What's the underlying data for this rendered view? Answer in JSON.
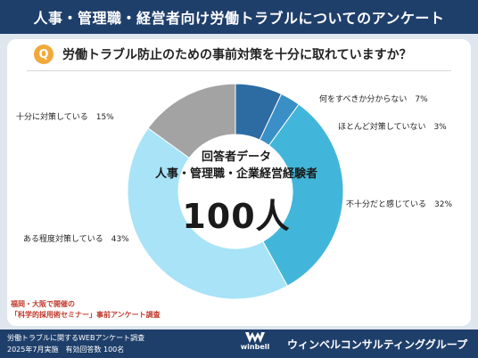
{
  "header": {
    "title": "人事・管理職・経営者向け労働トラブルについてのアンケート"
  },
  "question": {
    "badge": "Q",
    "text": "労働トラブル防止のための事前対策を十分に取れていますか？"
  },
  "center": {
    "line1": "回答者データ",
    "line2": "人事・管理職・企業経営経験者",
    "line3": "100人"
  },
  "chart_data": {
    "type": "pie",
    "categories": [
      "何をすべきか分からない",
      "ほとんど対策していない",
      "不十分だと感じている",
      "ある程度対策している",
      "十分に対策している"
    ],
    "values": [
      7,
      3,
      32,
      43,
      15
    ],
    "labels": [
      "何をすべきか分からない　7%",
      "ほとんど対策していない　3%",
      "不十分だと感じている　32%",
      "ある程度対策している　43%",
      "十分に対策している　15%"
    ],
    "colors": [
      "#2d6ca3",
      "#3a8fc6",
      "#42b6da",
      "#a8e3f7",
      "#a3a3a3"
    ],
    "title": "",
    "xlabel": "",
    "ylabel": ""
  },
  "source_note": {
    "line1": "福岡・大阪で開催の",
    "line2": "「科学的採用術セミナー」事前アンケート調査"
  },
  "footer": {
    "line1": "労働トラブルに関するWEBアンケート調査",
    "line2": "2025年7月実施　有効回答数 100名",
    "logo_word": "winbell",
    "company": "ウィンベルコンサルティンググループ"
  }
}
